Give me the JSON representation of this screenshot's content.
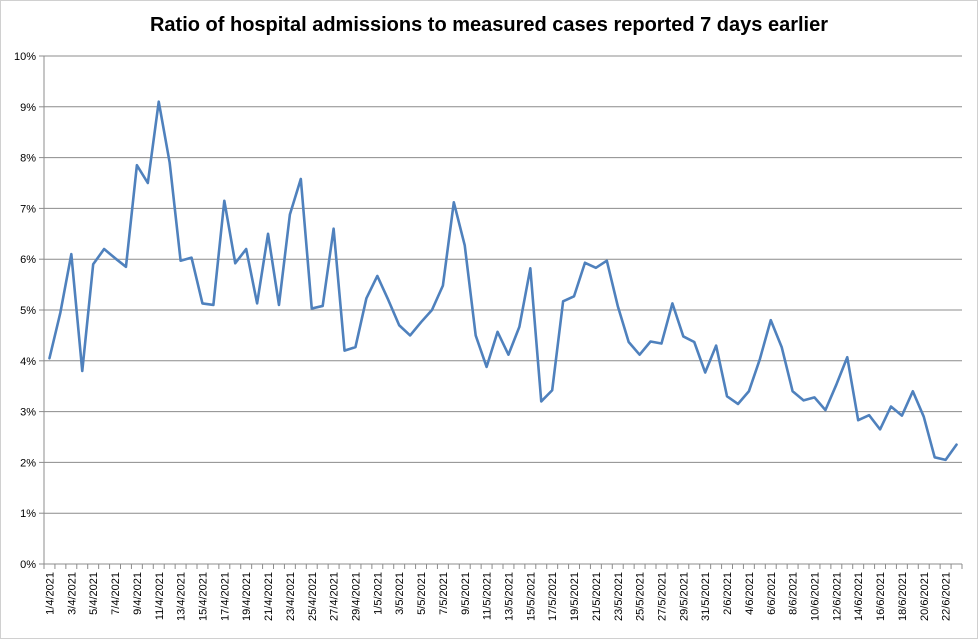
{
  "chart_data": {
    "type": "line",
    "title": "Ratio of hospital admissions to measured cases reported 7 days earlier",
    "xlabel": "",
    "ylabel": "",
    "ylim": [
      0,
      10
    ],
    "y_tick_labels": [
      "0%",
      "1%",
      "2%",
      "3%",
      "4%",
      "5%",
      "6%",
      "7%",
      "8%",
      "9%",
      "10%"
    ],
    "grid": true,
    "legend": "none",
    "colors": {
      "line": "#4f81bd",
      "grid": "#8c8c8c",
      "axis": "#8c8c8c"
    },
    "x_tick_labels": [
      "1/4/2021",
      "3/4/2021",
      "5/4/2021",
      "7/4/2021",
      "9/4/2021",
      "11/4/2021",
      "13/4/2021",
      "15/4/2021",
      "17/4/2021",
      "19/4/2021",
      "21/4/2021",
      "23/4/2021",
      "25/4/2021",
      "27/4/2021",
      "29/4/2021",
      "1/5/2021",
      "3/5/2021",
      "5/5/2021",
      "7/5/2021",
      "9/5/2021",
      "11/5/2021",
      "13/5/2021",
      "15/5/2021",
      "17/5/2021",
      "19/5/2021",
      "21/5/2021",
      "23/5/2021",
      "25/5/2021",
      "27/5/2021",
      "29/5/2021",
      "31/5/2021",
      "2/6/2021",
      "4/6/2021",
      "6/6/2021",
      "8/6/2021",
      "10/6/2021",
      "12/6/2021",
      "14/6/2021",
      "16/6/2021",
      "18/6/2021",
      "20/6/2021",
      "22/6/2021"
    ],
    "series": [
      {
        "values": [
          4.05,
          4.95,
          6.1,
          3.8,
          5.9,
          6.2,
          6.02,
          5.85,
          7.85,
          7.5,
          9.1,
          7.9,
          5.97,
          6.03,
          5.13,
          5.1,
          7.15,
          5.92,
          6.2,
          5.13,
          6.5,
          5.1,
          6.88,
          7.58,
          5.03,
          5.08,
          6.6,
          4.2,
          4.27,
          5.23,
          5.67,
          5.2,
          4.7,
          4.5,
          4.76,
          5.0,
          5.48,
          7.12,
          6.27,
          4.5,
          3.88,
          4.57,
          4.12,
          4.67,
          5.82,
          3.2,
          3.42,
          5.17,
          5.27,
          5.93,
          5.83,
          5.97,
          5.08,
          4.37,
          4.12,
          4.38,
          4.34,
          5.13,
          4.48,
          4.37,
          3.77,
          4.3,
          3.3,
          3.15,
          3.4,
          4.03,
          4.8,
          4.27,
          3.4,
          3.22,
          3.28,
          3.03,
          3.53,
          4.07,
          2.83,
          2.93,
          2.65,
          3.1,
          2.92,
          3.4,
          2.9,
          2.1,
          2.05,
          2.35
        ]
      }
    ]
  }
}
